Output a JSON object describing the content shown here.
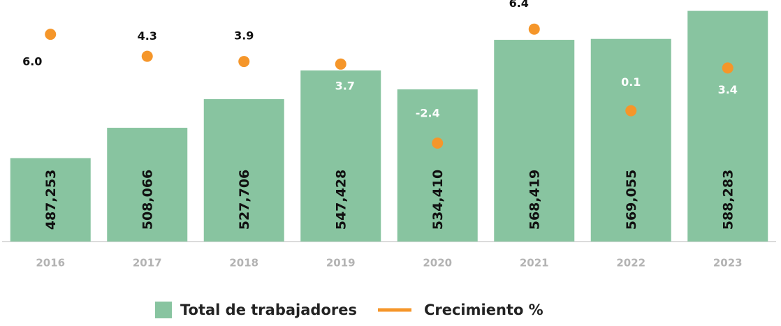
{
  "chart_data": {
    "type": "combo",
    "categories": [
      "2016",
      "2017",
      "2018",
      "2019",
      "2020",
      "2021",
      "2022",
      "2023"
    ],
    "series": [
      {
        "name": "Total de trabajadores",
        "type": "bar",
        "color": "#88c4a0",
        "values": [
          487253,
          508066,
          527706,
          547428,
          534410,
          568419,
          569055,
          588283
        ],
        "value_labels": [
          "487,253",
          "508,066",
          "527,706",
          "547,428",
          "534,410",
          "568,419",
          "569,055",
          "588,283"
        ]
      },
      {
        "name": "Crecimiento %",
        "type": "line",
        "axis": "y2",
        "color": "#f5962a",
        "values": [
          6.0,
          4.3,
          3.9,
          3.7,
          -2.4,
          6.4,
          0.1,
          3.4
        ],
        "value_labels": [
          "6.0",
          "4.3",
          "3.9",
          "3.7",
          "-2.4",
          "6.4",
          "0.1",
          "3.4"
        ]
      }
    ],
    "ylim": [
      430000,
      590000
    ],
    "y2lim": [
      -10,
      8
    ],
    "legend": "bottom"
  }
}
